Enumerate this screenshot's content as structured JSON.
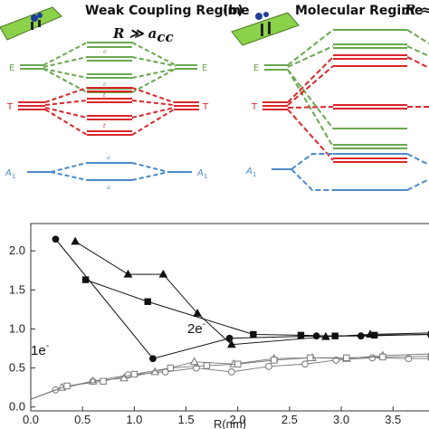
{
  "panel_a": {
    "title": "Weak Coupling Regime",
    "condition": "R ≫ a",
    "condition_sub": "cc",
    "labels": {
      "E_left": "E",
      "E_right": "E",
      "T_left": "T",
      "T_right": "T",
      "A1_left": "A",
      "A1_right": "A",
      "A1_sub": "1"
    },
    "level_labels": {
      "e_u": "e",
      "e_g": "e",
      "t_u": "t",
      "t_g": "t",
      "a_u": "a",
      "a_g": "a"
    }
  },
  "panel_b": {
    "tag": "(b)",
    "title": "Molecular Regime",
    "condition": "R ≈",
    "labels": {
      "E_left": "E",
      "T_left": "T",
      "A1_left": "A",
      "A1_sub": "1"
    }
  },
  "colors": {
    "E": "#6aa84f",
    "T": "#d9262a",
    "A1": "#4a8ac9"
  },
  "chart_data": {
    "type": "line",
    "xlabel": "R(nm)",
    "ylabel": "",
    "xlim": [
      0.0,
      3.9
    ],
    "ylim": [
      -0.05,
      2.35
    ],
    "xticks": [
      "0.0",
      "0.5",
      "1.0",
      "1.5",
      "2.0",
      "2.5",
      "3.0",
      "3.5"
    ],
    "yticks": [
      "0.0",
      "0.5",
      "1.0",
      "1.5",
      "2.0"
    ],
    "annotations": {
      "two_e": "2e",
      "two_e_sup": "-",
      "one_e": "1e",
      "one_e_sup": "-"
    },
    "series": [
      {
        "marker": "circle-filled",
        "x": [
          0.24,
          1.18,
          1.92,
          2.76,
          3.19,
          3.87
        ],
        "y": [
          2.15,
          0.62,
          0.88,
          0.91,
          0.91,
          0.93
        ]
      },
      {
        "marker": "triangle-filled",
        "x": [
          0.43,
          0.94,
          1.28,
          1.61,
          1.94,
          2.85,
          3.28,
          3.87
        ],
        "y": [
          2.12,
          1.7,
          1.7,
          1.2,
          0.8,
          0.9,
          0.93,
          0.95
        ]
      },
      {
        "marker": "square-filled",
        "x": [
          0.53,
          1.13,
          2.15,
          2.61,
          2.94,
          3.32,
          3.87
        ],
        "y": [
          1.63,
          1.35,
          0.93,
          0.92,
          0.91,
          0.92,
          0.93
        ]
      },
      {
        "marker": "circle-open",
        "x": [
          0.0,
          0.24,
          0.6,
          0.94,
          1.3,
          1.6,
          1.94,
          2.3,
          2.65,
          2.95,
          3.3,
          3.65,
          3.87
        ],
        "y": [
          0.1,
          0.22,
          0.33,
          0.41,
          0.45,
          0.5,
          0.45,
          0.52,
          0.55,
          0.6,
          0.63,
          0.62,
          0.62
        ]
      },
      {
        "marker": "triangle-open",
        "x": [
          0.0,
          0.3,
          0.6,
          0.9,
          1.2,
          1.58,
          1.96,
          2.35,
          2.72,
          3.05,
          3.4,
          3.87
        ],
        "y": [
          0.1,
          0.25,
          0.33,
          0.37,
          0.45,
          0.58,
          0.55,
          0.62,
          0.63,
          0.62,
          0.66,
          0.68
        ]
      },
      {
        "marker": "square-open",
        "x": [
          0.0,
          0.35,
          0.7,
          1.0,
          1.35,
          1.7,
          2.0,
          2.35,
          2.7,
          3.05,
          3.4,
          3.87
        ],
        "y": [
          0.1,
          0.27,
          0.33,
          0.42,
          0.5,
          0.53,
          0.55,
          0.6,
          0.63,
          0.63,
          0.64,
          0.65
        ]
      }
    ]
  }
}
